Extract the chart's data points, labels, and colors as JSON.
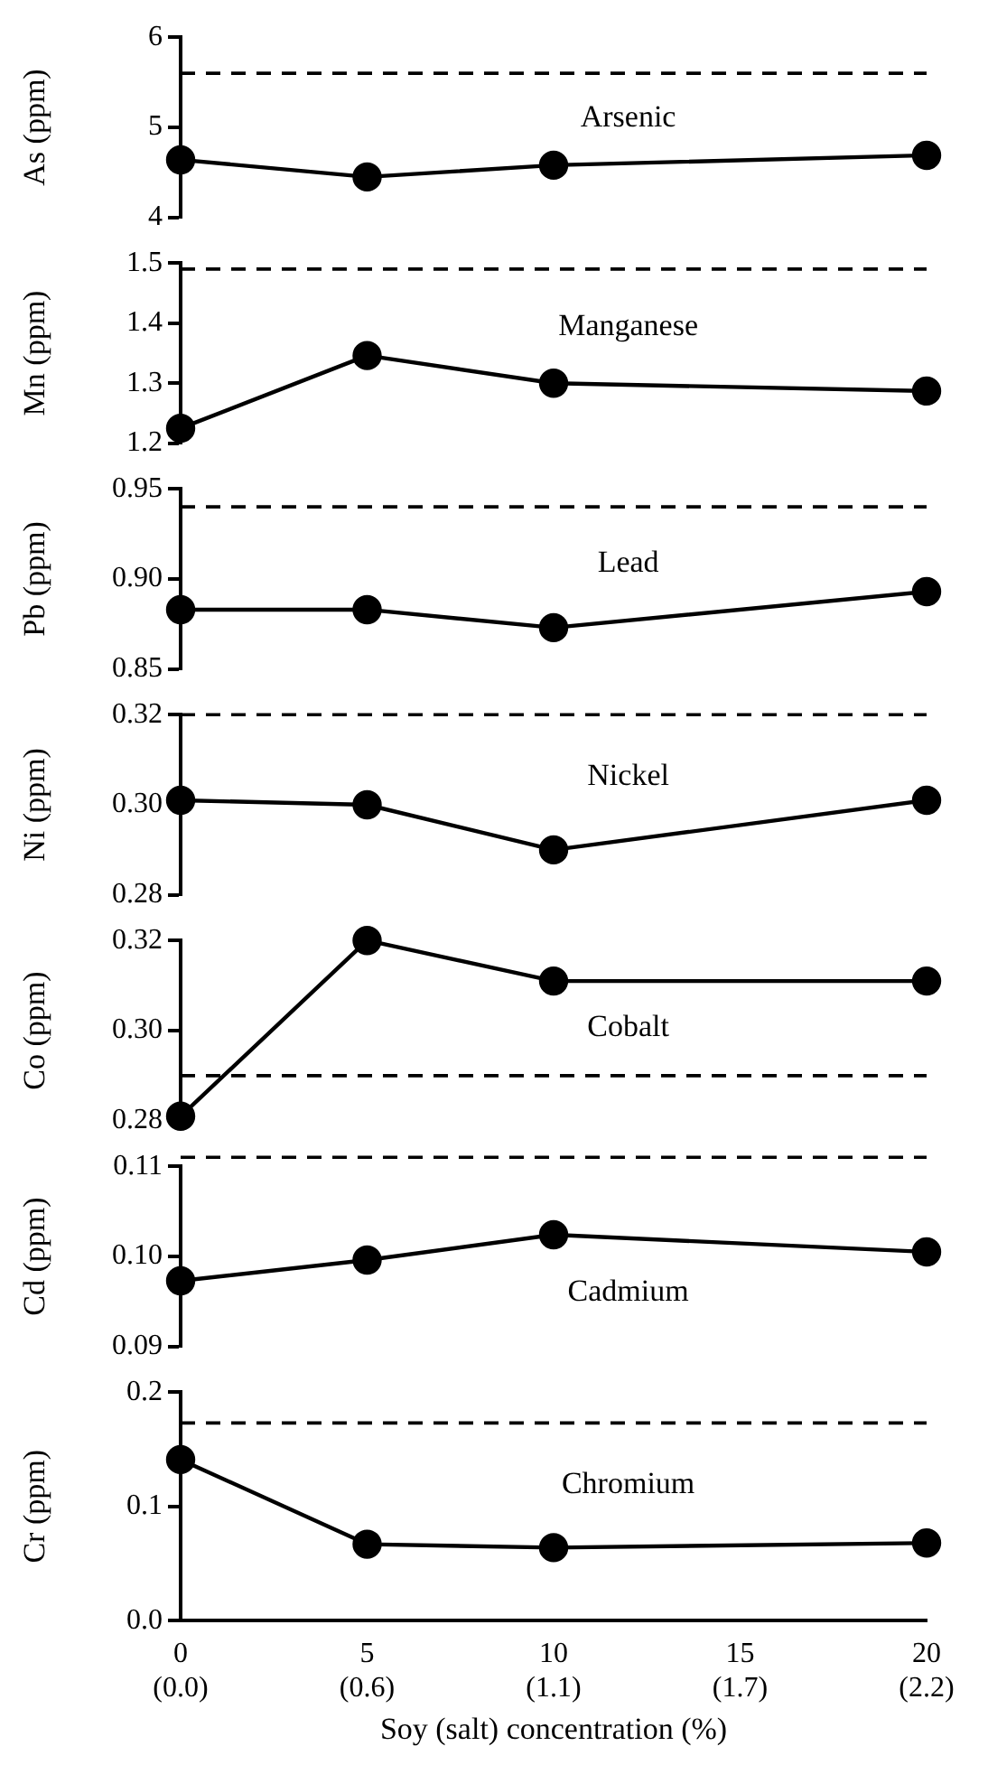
{
  "chart_data": [
    {
      "type": "line",
      "ylabel": "As (ppm)",
      "annotations": [
        "Arsenic"
      ],
      "categories": [
        null,
        null,
        null,
        null,
        null
      ],
      "values": [
        4.64,
        4.45,
        4.58,
        null,
        4.69
      ],
      "color": "#000000",
      "ylim": [
        4,
        6
      ],
      "yticks": [
        4,
        5,
        6
      ],
      "ref_lines": [
        {
          "axis": "y",
          "value": 5.6,
          "line_style": "dashed"
        }
      ],
      "marker": "circle",
      "grid": false,
      "tick_labels": "y"
    },
    {
      "type": "line",
      "ylabel": "Mn (ppm)",
      "annotations": [
        "Manganese"
      ],
      "categories": [
        null,
        null,
        null,
        null,
        null
      ],
      "values": [
        1.225,
        1.346,
        1.3,
        null,
        1.287
      ],
      "color": "#000000",
      "ylim": [
        1.2,
        1.5
      ],
      "yticks": [
        1.2,
        1.3,
        1.4,
        1.5
      ],
      "ref_lines": [
        {
          "axis": "y",
          "value": 1.49,
          "line_style": "dashed"
        }
      ],
      "marker": "circle",
      "grid": false,
      "tick_labels": "y"
    },
    {
      "type": "line",
      "ylabel": "Pb (ppm)",
      "annotations": [
        "Lead"
      ],
      "categories": [
        null,
        null,
        null,
        null,
        null
      ],
      "values": [
        0.883,
        0.883,
        0.873,
        null,
        0.893
      ],
      "color": "#000000",
      "ylim": [
        0.85,
        0.95
      ],
      "yticks": [
        0.85,
        {
          "value": 0.9,
          "label": "0.90"
        },
        0.95
      ],
      "ref_lines": [
        {
          "axis": "y",
          "value": 0.94,
          "line_style": "dashed"
        }
      ],
      "marker": "circle",
      "grid": false,
      "tick_labels": "y"
    },
    {
      "type": "line",
      "ylabel": "Ni (ppm)",
      "annotations": [
        "Nickel"
      ],
      "categories": [
        null,
        null,
        null,
        null,
        null
      ],
      "values": [
        0.301,
        0.3,
        0.29,
        null,
        0.301
      ],
      "color": "#000000",
      "ylim": [
        0.28,
        0.32
      ],
      "yticks": [
        0.28,
        {
          "value": 0.3,
          "label": "0.30"
        },
        0.32
      ],
      "ref_lines": [
        {
          "axis": "y",
          "value": 0.32,
          "line_style": "dashed"
        }
      ],
      "marker": "circle",
      "grid": false,
      "tick_labels": "y"
    },
    {
      "type": "line",
      "ylabel": "Co (ppm)",
      "annotations": [
        "Cobalt"
      ],
      "categories": [
        null,
        null,
        null,
        null,
        null
      ],
      "values": [
        0.281,
        0.32,
        0.311,
        null,
        0.311
      ],
      "color": "#000000",
      "ylim": [
        0.28,
        0.32
      ],
      "yticks": [
        0.28,
        {
          "value": 0.3,
          "label": "0.30"
        },
        0.32
      ],
      "ref_lines": [
        {
          "axis": "y",
          "value": 0.29,
          "line_style": "dashed"
        }
      ],
      "marker": "circle",
      "grid": false,
      "tick_labels": "y"
    },
    {
      "type": "line",
      "ylabel": "Cd (ppm)",
      "annotations": [
        "Cadmium"
      ],
      "categories": [
        null,
        null,
        null,
        null,
        null
      ],
      "values": [
        0.0973,
        0.0996,
        0.1024,
        null,
        0.1005
      ],
      "color": "#000000",
      "ylim": [
        0.09,
        0.11
      ],
      "yticks": [
        0.09,
        {
          "value": 0.1,
          "label": "0.10"
        },
        0.11
      ],
      "ref_lines": [
        {
          "axis": "y",
          "value": 0.111,
          "line_style": "dashed"
        }
      ],
      "marker": "circle",
      "grid": false,
      "tick_labels": "y"
    },
    {
      "type": "line",
      "ylabel": "Cr (ppm)",
      "xlabel": "Soy (salt) concentration (%)",
      "annotations": [
        "Chromium"
      ],
      "categories": [
        "0\n(0.0)",
        "5\n(0.6)",
        "10\n(1.1)",
        "15\n(1.7)",
        "20\n(2.2)"
      ],
      "values": [
        0.141,
        0.067,
        0.064,
        null,
        0.068
      ],
      "color": "#000000",
      "ylim": [
        0,
        0.2
      ],
      "yticks": [
        {
          "value": 0,
          "label": "0.0"
        },
        0.1,
        0.2
      ],
      "ref_lines": [
        {
          "axis": "y",
          "value": 0.173,
          "line_style": "dashed"
        }
      ],
      "marker": "circle",
      "grid": false
    }
  ]
}
